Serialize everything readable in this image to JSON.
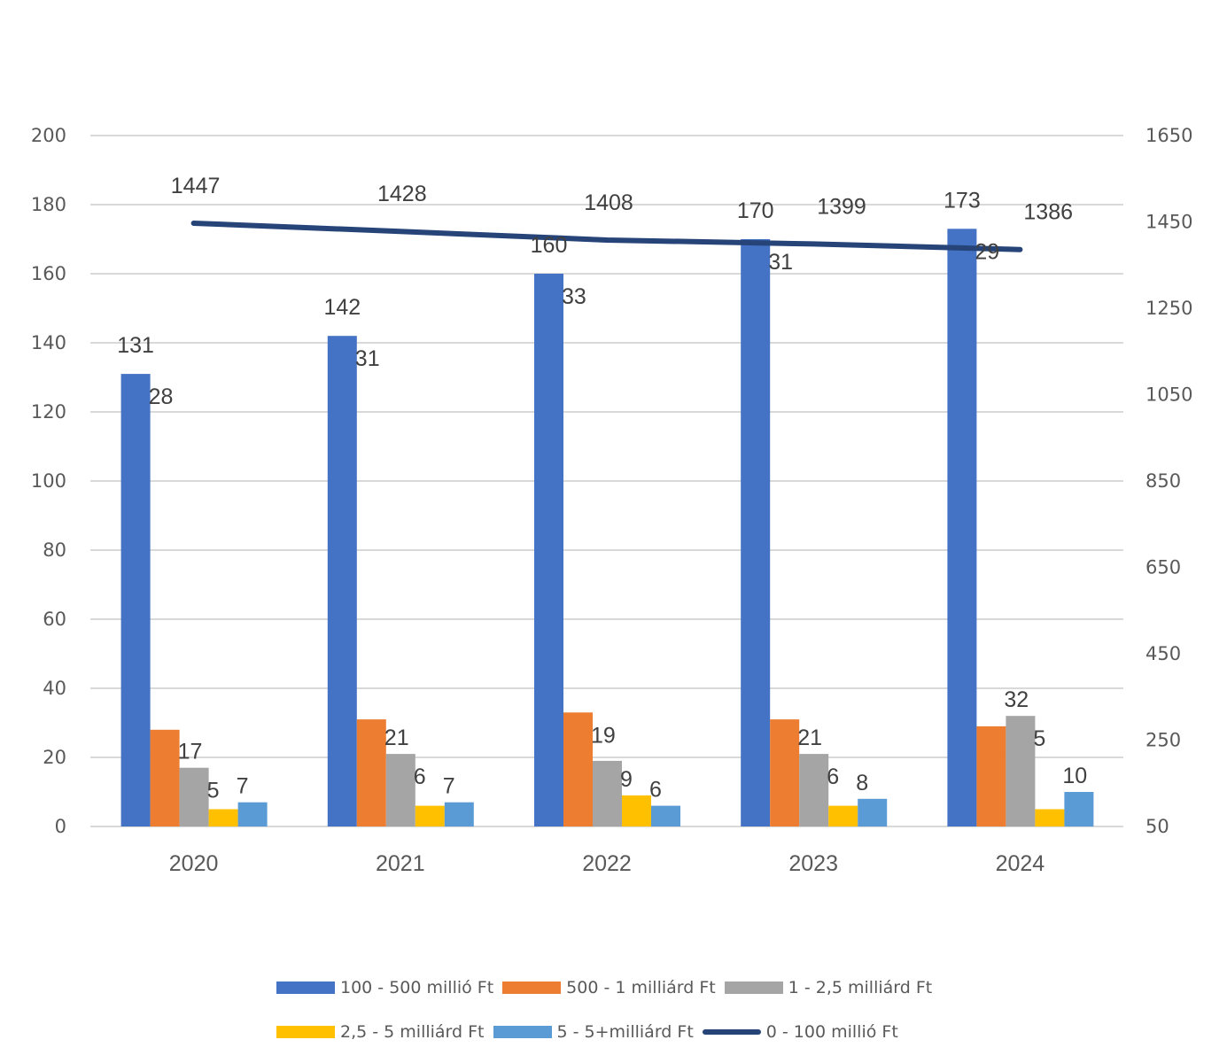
{
  "chart_data": {
    "type": "bar",
    "title": "",
    "xlabel": "",
    "ylabel": "",
    "categories": [
      "2020",
      "2021",
      "2022",
      "2023",
      "2024"
    ],
    "ylim": [
      0,
      200
    ],
    "yticks": [
      0,
      20,
      40,
      60,
      80,
      100,
      120,
      140,
      160,
      180,
      200
    ],
    "y2lim": [
      50,
      1650
    ],
    "y2ticks": [
      50,
      250,
      450,
      650,
      850,
      1050,
      1250,
      1450,
      1650
    ],
    "grid": true,
    "legend_position": "bottom",
    "series": [
      {
        "name": "100 - 500 millió Ft",
        "type": "bar",
        "axis": "left",
        "color": "#4472C4",
        "values": [
          131,
          142,
          160,
          170,
          173
        ]
      },
      {
        "name": "500 - 1 milliárd Ft",
        "type": "bar",
        "axis": "left",
        "color": "#ED7D31",
        "values": [
          28,
          31,
          33,
          31,
          29
        ]
      },
      {
        "name": "1 - 2,5 milliárd Ft",
        "type": "bar",
        "axis": "left",
        "color": "#A5A5A5",
        "values": [
          17,
          21,
          19,
          21,
          32
        ]
      },
      {
        "name": "2,5 - 5 milliárd Ft",
        "type": "bar",
        "axis": "left",
        "color": "#FFC000",
        "values": [
          5,
          6,
          9,
          6,
          5
        ]
      },
      {
        "name": "5 - 5+milliárd Ft",
        "type": "bar",
        "axis": "left",
        "color": "#5B9BD5",
        "values": [
          7,
          7,
          6,
          8,
          10
        ]
      },
      {
        "name": "0 - 100 millió Ft",
        "type": "line",
        "axis": "right",
        "color": "#264478",
        "values": [
          1447,
          1428,
          1408,
          1399,
          1386
        ]
      }
    ]
  },
  "legend": {
    "rows": [
      [
        0,
        1,
        2
      ],
      [
        3,
        4,
        5
      ]
    ]
  }
}
